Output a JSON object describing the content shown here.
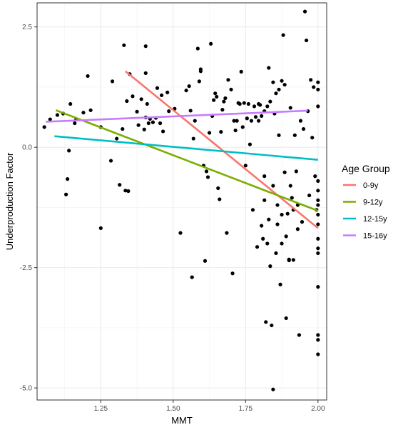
{
  "chart_data": {
    "type": "scatter",
    "xlabel": "MMT",
    "ylabel": "Underproduction Factor",
    "xlim": [
      1.03,
      2.03
    ],
    "ylim": [
      -5.25,
      3.0
    ],
    "x_ticks": [
      1.25,
      1.5,
      1.75,
      2.0
    ],
    "x_tick_labels": [
      "1.25",
      "1.50",
      "1.75",
      "2.00"
    ],
    "y_ticks": [
      -5.0,
      -2.5,
      0.0,
      2.5
    ],
    "y_tick_labels": [
      "-5.0",
      "-2.5",
      "0.0",
      "2.5"
    ],
    "grid": true,
    "legend": {
      "title": "Age Group",
      "position": "right"
    },
    "series": [
      {
        "name": "0-9y",
        "color": "#F8766D",
        "x": [
          1.335,
          2.0
        ],
        "y": [
          1.58,
          -1.68
        ]
      },
      {
        "name": "9-12y",
        "color": "#7CAE00",
        "x": [
          1.095,
          2.0
        ],
        "y": [
          0.77,
          -1.32
        ]
      },
      {
        "name": "12-15y",
        "color": "#00BFC4",
        "x": [
          1.09,
          2.0
        ],
        "y": [
          0.23,
          -0.26
        ]
      },
      {
        "name": "15-16y",
        "color": "#C77CFF",
        "x": [
          1.06,
          1.965
        ],
        "y": [
          0.53,
          0.76
        ]
      }
    ],
    "points": [
      [
        1.055,
        0.42
      ],
      [
        1.075,
        0.58
      ],
      [
        1.1,
        0.67
      ],
      [
        1.12,
        0.7
      ],
      [
        1.13,
        -0.98
      ],
      [
        1.135,
        -0.66
      ],
      [
        1.14,
        -0.07
      ],
      [
        1.145,
        0.9
      ],
      [
        1.16,
        0.5
      ],
      [
        1.165,
        0.58
      ],
      [
        1.19,
        0.72
      ],
      [
        1.205,
        1.48
      ],
      [
        1.215,
        0.77
      ],
      [
        1.25,
        -1.68
      ],
      [
        1.25,
        0.42
      ],
      [
        1.285,
        -0.28
      ],
      [
        1.29,
        1.37
      ],
      [
        1.305,
        0.18
      ],
      [
        1.315,
        -0.78
      ],
      [
        1.325,
        0.38
      ],
      [
        1.33,
        2.12
      ],
      [
        1.335,
        -0.9
      ],
      [
        1.34,
        0.96
      ],
      [
        1.345,
        -0.91
      ],
      [
        1.35,
        1.52
      ],
      [
        1.36,
        1.06
      ],
      [
        1.375,
        0.74
      ],
      [
        1.38,
        0.46
      ],
      [
        1.39,
        1.0
      ],
      [
        1.4,
        0.37
      ],
      [
        1.405,
        0.62
      ],
      [
        1.405,
        1.54
      ],
      [
        1.405,
        2.1
      ],
      [
        1.41,
        0.9
      ],
      [
        1.415,
        0.5
      ],
      [
        1.42,
        0.59
      ],
      [
        1.43,
        0.52
      ],
      [
        1.44,
        0.61
      ],
      [
        1.445,
        1.23
      ],
      [
        1.455,
        0.5
      ],
      [
        1.46,
        1.08
      ],
      [
        1.465,
        0.33
      ],
      [
        1.48,
        1.14
      ],
      [
        1.485,
        0.75
      ],
      [
        1.505,
        0.8
      ],
      [
        1.525,
        -1.78
      ],
      [
        1.545,
        1.18
      ],
      [
        1.555,
        1.27
      ],
      [
        1.56,
        0.76
      ],
      [
        1.565,
        -2.7
      ],
      [
        1.57,
        0.18
      ],
      [
        1.575,
        0.55
      ],
      [
        1.585,
        2.05
      ],
      [
        1.59,
        1.37
      ],
      [
        1.595,
        1.58
      ],
      [
        1.595,
        1.62
      ],
      [
        1.605,
        -0.38
      ],
      [
        1.61,
        -2.36
      ],
      [
        1.615,
        -0.5
      ],
      [
        1.62,
        -0.62
      ],
      [
        1.625,
        0.3
      ],
      [
        1.63,
        2.15
      ],
      [
        1.635,
        0.65
      ],
      [
        1.64,
        0.98
      ],
      [
        1.645,
        1.12
      ],
      [
        1.65,
        1.05
      ],
      [
        1.655,
        -0.85
      ],
      [
        1.66,
        -1.08
      ],
      [
        1.665,
        0.32
      ],
      [
        1.67,
        0.78
      ],
      [
        1.675,
        0.95
      ],
      [
        1.68,
        1.02
      ],
      [
        1.685,
        -1.78
      ],
      [
        1.69,
        1.4
      ],
      [
        1.7,
        1.2
      ],
      [
        1.705,
        -2.62
      ],
      [
        1.71,
        0.55
      ],
      [
        1.715,
        0.35
      ],
      [
        1.72,
        0.55
      ],
      [
        1.725,
        0.92
      ],
      [
        1.73,
        0.9
      ],
      [
        1.735,
        1.57
      ],
      [
        1.74,
        0.42
      ],
      [
        1.745,
        0.92
      ],
      [
        1.75,
        -0.38
      ],
      [
        1.755,
        0.6
      ],
      [
        1.76,
        0.9
      ],
      [
        1.765,
        0.06
      ],
      [
        1.77,
        0.55
      ],
      [
        1.775,
        -1.3
      ],
      [
        1.78,
        0.85
      ],
      [
        1.785,
        0.63
      ],
      [
        1.79,
        -2.07
      ],
      [
        1.795,
        0.55
      ],
      [
        1.8,
        0.88
      ],
      [
        1.805,
        -1.63
      ],
      [
        1.81,
        -1.9
      ],
      [
        1.815,
        -0.6
      ],
      [
        1.82,
        -3.63
      ],
      [
        1.825,
        -2.0
      ],
      [
        1.83,
        1.65
      ],
      [
        1.835,
        -2.47
      ],
      [
        1.84,
        -3.7
      ],
      [
        1.845,
        -5.03
      ],
      [
        1.85,
        0.7
      ],
      [
        1.855,
        -2.2
      ],
      [
        1.86,
        -1.2
      ],
      [
        1.865,
        0.25
      ],
      [
        1.87,
        -2.85
      ],
      [
        1.875,
        -1.4
      ],
      [
        1.88,
        2.33
      ],
      [
        1.885,
        -0.52
      ],
      [
        1.89,
        -3.55
      ],
      [
        1.895,
        -1.38
      ],
      [
        1.9,
        -2.33
      ],
      [
        1.905,
        0.82
      ],
      [
        1.91,
        -1.05
      ],
      [
        1.915,
        -2.34
      ],
      [
        1.92,
        0.25
      ],
      [
        1.925,
        -0.5
      ],
      [
        1.93,
        -1.2
      ],
      [
        1.935,
        -3.9
      ],
      [
        1.94,
        0.55
      ],
      [
        1.945,
        -1.55
      ],
      [
        1.95,
        0.38
      ],
      [
        1.955,
        2.82
      ],
      [
        1.96,
        2.22
      ],
      [
        1.965,
        0.75
      ],
      [
        1.97,
        -1.0
      ],
      [
        1.975,
        1.4
      ],
      [
        1.98,
        0.2
      ],
      [
        1.985,
        1.25
      ],
      [
        1.99,
        -0.6
      ],
      [
        1.995,
        -1.3
      ],
      [
        2.0,
        1.35
      ],
      [
        2.0,
        1.2
      ],
      [
        2.0,
        0.85
      ],
      [
        2.0,
        -0.7
      ],
      [
        2.0,
        -0.9
      ],
      [
        2.0,
        -1.1
      ],
      [
        2.0,
        -1.2
      ],
      [
        2.0,
        -1.4
      ],
      [
        2.0,
        -1.6
      ],
      [
        2.0,
        -1.9
      ],
      [
        2.0,
        -2.1
      ],
      [
        2.0,
        -2.2
      ],
      [
        2.0,
        -2.9
      ],
      [
        2.0,
        -3.9
      ],
      [
        2.0,
        -4.0
      ],
      [
        2.0,
        -4.3
      ],
      [
        1.885,
        1.3
      ],
      [
        1.875,
        1.38
      ],
      [
        1.865,
        1.2
      ],
      [
        1.855,
        1.12
      ],
      [
        1.845,
        1.35
      ],
      [
        1.835,
        0.95
      ],
      [
        1.825,
        0.85
      ],
      [
        1.815,
        0.75
      ],
      [
        1.805,
        0.65
      ],
      [
        1.795,
        0.9
      ],
      [
        1.875,
        -2.0
      ],
      [
        1.86,
        -1.6
      ],
      [
        1.845,
        -0.8
      ],
      [
        1.83,
        -1.5
      ],
      [
        1.815,
        -1.1
      ],
      [
        1.89,
        -1.85
      ],
      [
        1.9,
        -2.35
      ],
      [
        1.905,
        -0.8
      ],
      [
        1.915,
        -1.3
      ],
      [
        1.93,
        -1.7
      ]
    ]
  }
}
